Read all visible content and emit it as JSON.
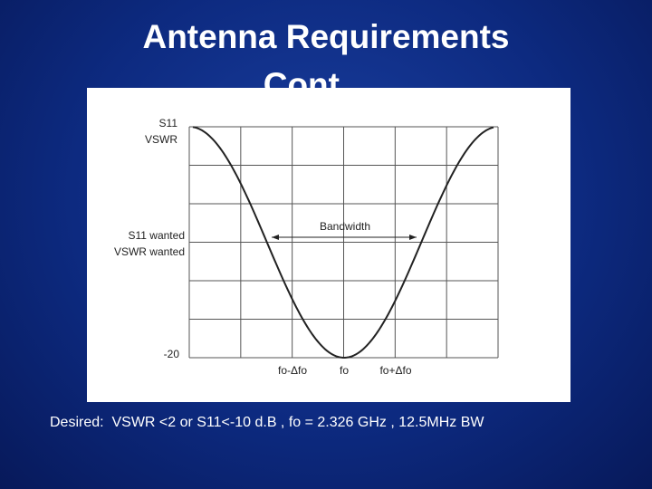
{
  "slide": {
    "title_lines": [
      "Antenna Requirements",
      "Cont."
    ],
    "diagram": {
      "y_labels": [
        "S11",
        "VSWR",
        "S11 wanted",
        "VSWR wanted",
        "-20"
      ],
      "bandwidth": "Bandwidth",
      "x_labels": [
        "fo-Δfo",
        "fo",
        "fo+Δfo"
      ]
    },
    "footer": "Desired:  VSWR <2 or S11<-10 d.B , fo = 2.326 GHz , 12.5MHz BW"
  }
}
